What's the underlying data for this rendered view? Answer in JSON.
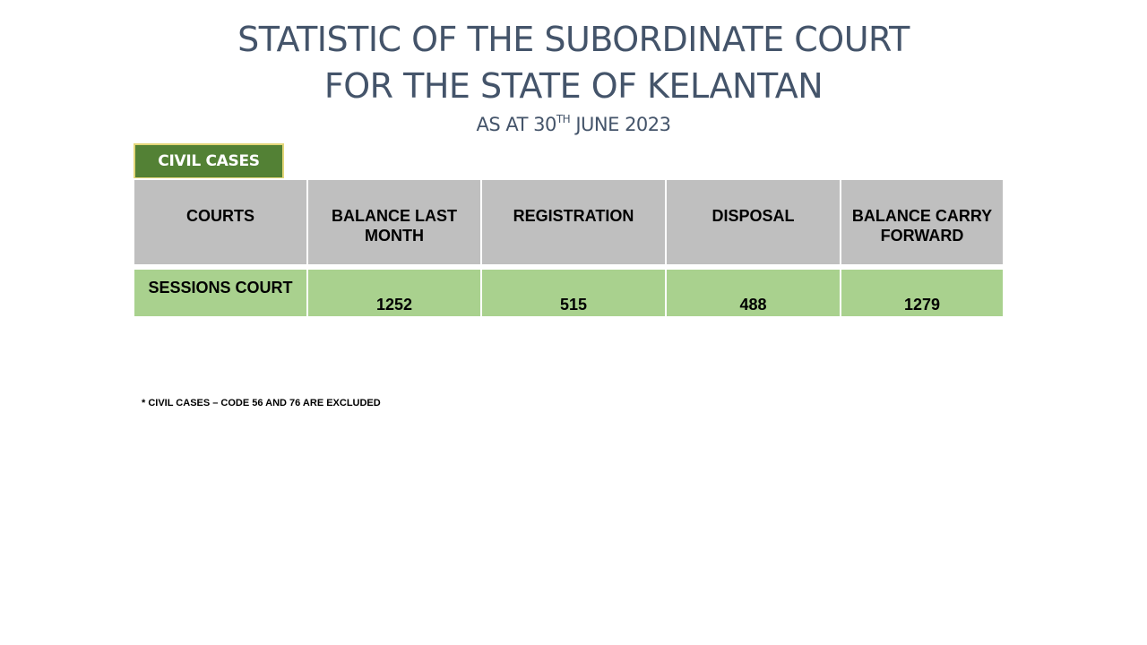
{
  "title": {
    "line1": "STATISTIC OF THE SUBORDINATE COURT",
    "line2": "FOR THE STATE OF KELANTAN",
    "subtitle_prefix": "AS AT 30",
    "subtitle_sup": "TH",
    "subtitle_suffix": " JUNE 2023"
  },
  "section_label": "CIVIL CASES",
  "table": {
    "headers": [
      "COURTS",
      "BALANCE LAST MONTH",
      "REGISTRATION",
      "DISPOSAL",
      "BALANCE CARRY FORWARD"
    ],
    "rows": [
      {
        "court": "SESSIONS COURT",
        "balance_last_month": "1252",
        "registration": "515",
        "disposal": "488",
        "balance_carry_forward": "1279"
      }
    ]
  },
  "footnote": "* CIVIL CASES – CODE 56 AND 76 ARE EXCLUDED",
  "colors": {
    "title_text": "#44546a",
    "label_bg": "#538135",
    "label_border": "#e4d77a",
    "header_bg": "#bfbfbf",
    "row_bg": "#a9d18e"
  }
}
